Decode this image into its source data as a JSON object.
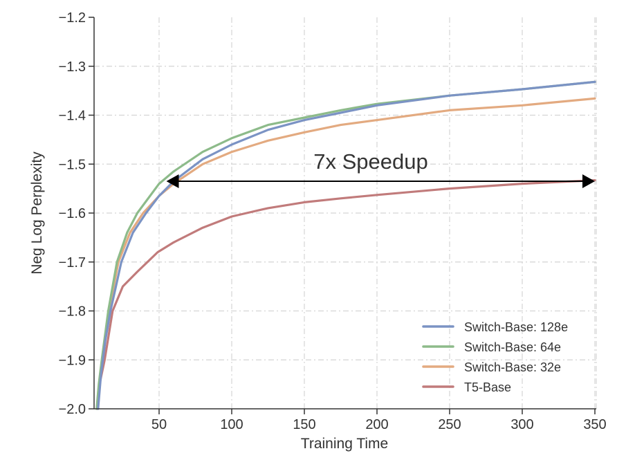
{
  "chart_data": {
    "type": "line",
    "xlabel": "Training Time",
    "ylabel": "Neg Log Perplexity",
    "xlim": [
      5,
      350
    ],
    "ylim": [
      -2.0,
      -1.2
    ],
    "xticks": [
      50,
      100,
      150,
      200,
      250,
      300,
      350
    ],
    "yticks": [
      -1.2,
      -1.3,
      -1.4,
      -1.5,
      -1.6,
      -1.7,
      -1.8,
      -1.9,
      -2.0
    ],
    "xtick_labels": [
      "50",
      "100",
      "150",
      "200",
      "250",
      "300",
      "350"
    ],
    "ytick_labels": [
      "−1.2",
      "−1.3",
      "−1.4",
      "−1.5",
      "−1.6",
      "−1.7",
      "−1.8",
      "−1.9",
      "−2.0"
    ],
    "grid": true,
    "legend_position": "bottom-right",
    "annotation": {
      "text": "7x Speedup",
      "arrow_from_x": 55,
      "arrow_to_x": 350,
      "arrow_y": -1.535
    },
    "series": [
      {
        "name": "Switch-Base: 128e",
        "color": "#7b93c4",
        "x": [
          8,
          10,
          13,
          16.5,
          24,
          32,
          41,
          50,
          60,
          80,
          100,
          125,
          150,
          175,
          200,
          250,
          300,
          350
        ],
        "y": [
          -2.0,
          -1.93,
          -1.86,
          -1.8,
          -1.7,
          -1.64,
          -1.6,
          -1.565,
          -1.535,
          -1.49,
          -1.46,
          -1.43,
          -1.41,
          -1.395,
          -1.38,
          -1.36,
          -1.347,
          -1.332
        ]
      },
      {
        "name": "Switch-Base: 64e",
        "color": "#8dbb8a",
        "x": [
          7,
          8.5,
          10.5,
          15,
          21,
          28,
          35,
          50,
          60,
          80,
          100,
          125,
          150,
          175,
          200,
          250,
          300,
          350
        ],
        "y": [
          -2.0,
          -1.95,
          -1.9,
          -1.8,
          -1.7,
          -1.64,
          -1.6,
          -1.54,
          -1.515,
          -1.475,
          -1.447,
          -1.42,
          -1.405,
          -1.39,
          -1.377,
          -1.36,
          -1.347,
          -1.332
        ]
      },
      {
        "name": "Switch-Base: 32e",
        "color": "#e3aa80",
        "x": [
          7.5,
          9,
          11.5,
          15.5,
          22,
          30,
          39,
          50,
          60,
          80,
          100,
          125,
          150,
          175,
          200,
          250,
          300,
          350
        ],
        "y": [
          -2.0,
          -1.94,
          -1.88,
          -1.8,
          -1.7,
          -1.64,
          -1.6,
          -1.565,
          -1.54,
          -1.5,
          -1.475,
          -1.452,
          -1.435,
          -1.42,
          -1.41,
          -1.39,
          -1.38,
          -1.366
        ]
      },
      {
        "name": "T5-Base",
        "color": "#c17b7b",
        "x": [
          7.5,
          9,
          12.5,
          18,
          25,
          35,
          49,
          60,
          80,
          100,
          125,
          150,
          175,
          200,
          250,
          300,
          350
        ],
        "y": [
          -2.0,
          -1.95,
          -1.9,
          -1.8,
          -1.75,
          -1.72,
          -1.68,
          -1.66,
          -1.63,
          -1.607,
          -1.59,
          -1.578,
          -1.57,
          -1.563,
          -1.55,
          -1.54,
          -1.533
        ]
      }
    ]
  }
}
